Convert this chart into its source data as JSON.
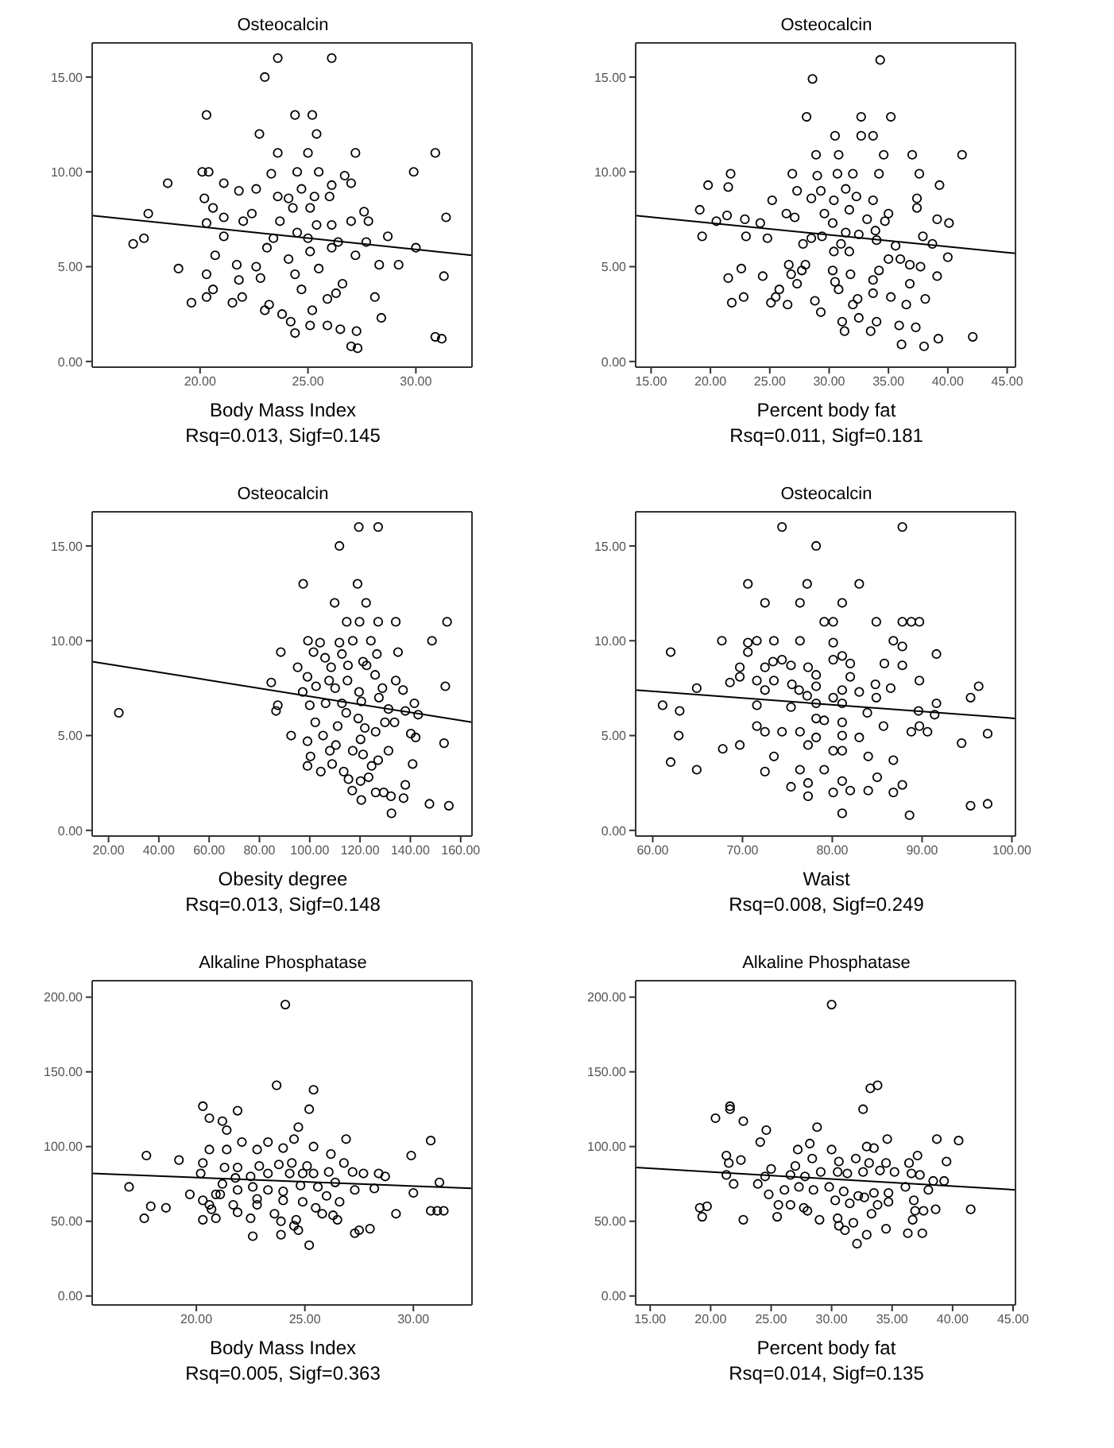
{
  "chart_data": [
    {
      "type": "scatter",
      "title": "Osteocalcin",
      "xlabel": "Body Mass Index",
      "annotations": [
        "Rsq=0.013, Sigf=0.145"
      ],
      "marker": "circle",
      "xlim": [
        15,
        32.6
      ],
      "ylim": [
        -0.3,
        16.8
      ],
      "xticks": [
        {
          "value": 20,
          "label": "20.00"
        },
        {
          "value": 25,
          "label": "25.00"
        },
        {
          "value": 30,
          "label": "30.00"
        }
      ],
      "yticks": [
        {
          "value": 0,
          "label": "0.00"
        },
        {
          "value": 5,
          "label": "5.00"
        },
        {
          "value": 10,
          "label": "10.00"
        },
        {
          "value": 15,
          "label": "15.00"
        }
      ],
      "series": [
        {
          "type": "scatter",
          "color": "#000000",
          "x": [
            23.6,
            26.1,
            23.0,
            20.3,
            24.4,
            25.2,
            22.75,
            25.4,
            23.6,
            25.0,
            27.2,
            30.9,
            20.1,
            20.4,
            23.3,
            24.5,
            25.5,
            29.9,
            18.5,
            21.1,
            26.7,
            27.0,
            21.8,
            22.6,
            24.7,
            26.1,
            20.2,
            23.6,
            24.1,
            25.3,
            26.0,
            20.6,
            22.4,
            24.3,
            25.1,
            17.6,
            21.1,
            27.6,
            27.8,
            31.4,
            20.3,
            22.0,
            23.7,
            25.4,
            26.1,
            27.0,
            16.9,
            17.4,
            21.1,
            23.4,
            24.5,
            25.0,
            26.4,
            27.7,
            28.7,
            30.0,
            20.7,
            23.1,
            24.1,
            25.1,
            26.1,
            27.2,
            19.0,
            21.7,
            22.6,
            24.4,
            25.5,
            28.3,
            29.2,
            20.3,
            31.3,
            21.8,
            22.8,
            26.6,
            20.6,
            24.7,
            26.3,
            20.3,
            19.6,
            21.5,
            21.95,
            23.2,
            25.9,
            28.1,
            23.0,
            23.8,
            25.2,
            28.4,
            24.2,
            25.1,
            25.9,
            26.5,
            27.25,
            24.4,
            27.0,
            27.3,
            30.9,
            31.2
          ],
          "values": [
            16.0,
            16.0,
            15.0,
            13.0,
            13.0,
            13.0,
            12.0,
            12.0,
            11.0,
            11.0,
            11.0,
            11.0,
            10.0,
            10.0,
            9.9,
            10.0,
            10.0,
            10.0,
            9.4,
            9.4,
            9.8,
            9.4,
            9.0,
            9.1,
            9.1,
            9.3,
            8.6,
            8.7,
            8.6,
            8.7,
            8.7,
            8.1,
            7.8,
            8.1,
            8.1,
            7.8,
            7.6,
            7.9,
            7.4,
            7.6,
            7.3,
            7.4,
            7.4,
            7.2,
            7.2,
            7.4,
            6.2,
            6.5,
            6.6,
            6.5,
            6.8,
            6.5,
            6.3,
            6.3,
            6.6,
            6.0,
            5.6,
            6.0,
            5.4,
            5.8,
            6.0,
            5.6,
            4.9,
            5.1,
            5.0,
            4.6,
            4.9,
            5.1,
            5.1,
            4.6,
            4.5,
            4.3,
            4.4,
            4.1,
            3.8,
            3.8,
            3.6,
            3.4,
            3.1,
            3.1,
            3.4,
            3.0,
            3.3,
            3.4,
            2.7,
            2.5,
            2.7,
            2.3,
            2.1,
            1.9,
            1.9,
            1.7,
            1.6,
            1.5,
            0.8,
            0.7,
            1.3,
            1.2
          ]
        },
        {
          "type": "line",
          "marker": "none",
          "color": "#000000",
          "x": [
            15,
            32.6
          ],
          "values": [
            7.7,
            5.6
          ]
        }
      ]
    },
    {
      "type": "scatter",
      "title": "Osteocalcin",
      "xlabel": "Percent body fat",
      "annotations": [
        "Rsq=0.011, Sigf=0.181"
      ],
      "marker": "circle",
      "xlim": [
        13.7,
        45.7
      ],
      "ylim": [
        -0.3,
        16.8
      ],
      "xticks": [
        {
          "value": 15,
          "label": "15.00"
        },
        {
          "value": 20,
          "label": "20.00"
        },
        {
          "value": 25,
          "label": "25.00"
        },
        {
          "value": 30,
          "label": "30.00"
        },
        {
          "value": 35,
          "label": "35.00"
        },
        {
          "value": 40,
          "label": "40.00"
        },
        {
          "value": 45,
          "label": "45.00"
        }
      ],
      "yticks": [
        {
          "value": 0,
          "label": "0.00"
        },
        {
          "value": 5,
          "label": "5.00"
        },
        {
          "value": 10,
          "label": "10.00"
        },
        {
          "value": 15,
          "label": "15.00"
        }
      ],
      "series": [
        {
          "type": "scatter",
          "color": "#000000",
          "x": [
            34.3,
            28.6,
            28.1,
            32.7,
            35.2,
            30.5,
            32.7,
            33.7,
            28.9,
            30.8,
            34.6,
            37.0,
            41.2,
            21.7,
            26.9,
            29.0,
            30.7,
            32.0,
            34.2,
            37.6,
            19.8,
            21.5,
            27.3,
            29.3,
            31.4,
            32.3,
            39.3,
            25.2,
            28.5,
            30.4,
            33.7,
            37.4,
            19.1,
            26.4,
            29.6,
            31.7,
            35.0,
            37.4,
            21.4,
            20.5,
            22.9,
            24.2,
            27.1,
            30.3,
            33.2,
            34.7,
            39.1,
            40.1,
            19.3,
            23.0,
            24.8,
            28.5,
            29.4,
            31.4,
            32.5,
            33.9,
            37.9,
            27.8,
            31.0,
            34.0,
            35.6,
            38.7,
            30.4,
            31.7,
            35.0,
            36.0,
            40.0,
            22.6,
            26.6,
            28.0,
            30.3,
            31.8,
            34.2,
            36.8,
            37.7,
            21.5,
            24.4,
            26.8,
            27.7,
            39.1,
            27.3,
            30.5,
            33.7,
            36.8,
            30.8,
            25.8,
            25.5,
            22.8,
            21.8,
            25.1,
            26.5,
            28.8,
            32.4,
            33.7,
            35.2,
            38.1,
            36.5,
            29.3,
            32.0,
            32.5,
            34.0,
            31.1,
            35.9,
            37.3,
            31.3,
            33.5,
            39.2,
            42.1,
            36.1,
            38.0
          ],
          "values": [
            15.9,
            14.9,
            12.9,
            12.9,
            12.9,
            11.9,
            11.9,
            11.9,
            10.9,
            10.9,
            10.9,
            10.9,
            10.9,
            9.9,
            9.9,
            9.8,
            9.9,
            9.9,
            9.9,
            9.9,
            9.3,
            9.2,
            9.0,
            9.0,
            9.1,
            8.7,
            9.3,
            8.5,
            8.6,
            8.5,
            8.5,
            8.6,
            8.0,
            7.8,
            7.8,
            8.0,
            7.8,
            8.1,
            7.7,
            7.4,
            7.5,
            7.3,
            7.6,
            7.3,
            7.5,
            7.4,
            7.5,
            7.3,
            6.6,
            6.6,
            6.5,
            6.5,
            6.6,
            6.8,
            6.7,
            6.9,
            6.6,
            6.2,
            6.2,
            6.4,
            6.1,
            6.2,
            5.8,
            5.8,
            5.4,
            5.4,
            5.5,
            4.9,
            5.1,
            5.1,
            4.8,
            4.6,
            4.8,
            5.1,
            5.0,
            4.4,
            4.5,
            4.6,
            4.8,
            4.5,
            4.1,
            4.2,
            4.3,
            4.1,
            3.8,
            3.8,
            3.4,
            3.4,
            3.1,
            3.1,
            3.0,
            3.2,
            3.3,
            3.6,
            3.4,
            3.3,
            3.0,
            2.6,
            3.0,
            2.3,
            2.1,
            2.1,
            1.9,
            1.8,
            1.6,
            1.6,
            1.2,
            1.3,
            0.9,
            0.8
          ]
        },
        {
          "type": "line",
          "marker": "none",
          "color": "#000000",
          "x": [
            13.7,
            45.7
          ],
          "values": [
            7.7,
            5.7
          ]
        }
      ]
    },
    {
      "type": "scatter",
      "title": "Osteocalcin",
      "xlabel": "Obesity degree",
      "annotations": [
        "Rsq=0.013, Sigf=0.148"
      ],
      "marker": "circle",
      "xlim": [
        13.5,
        164.5
      ],
      "ylim": [
        -0.3,
        16.8
      ],
      "xticks": [
        {
          "value": 20,
          "label": "20.00"
        },
        {
          "value": 40,
          "label": "40.00"
        },
        {
          "value": 60,
          "label": "60.00"
        },
        {
          "value": 80,
          "label": "80.00"
        },
        {
          "value": 100,
          "label": "100.00"
        },
        {
          "value": 120,
          "label": "120.00"
        },
        {
          "value": 140,
          "label": "140.00"
        },
        {
          "value": 160,
          "label": "160.00"
        }
      ],
      "yticks": [
        {
          "value": 0,
          "label": "0.00"
        },
        {
          "value": 5,
          "label": "5.00"
        },
        {
          "value": 10,
          "label": "10.00"
        },
        {
          "value": 15,
          "label": "15.00"
        }
      ],
      "series": [
        {
          "type": "scatter",
          "color": "#000000",
          "x": [
            24.1,
            119.5,
            127.2,
            111.8,
            97.4,
            119.0,
            109.9,
            122.4,
            114.7,
            119.8,
            127.2,
            134.2,
            154.6,
            99.3,
            104.1,
            111.8,
            117.1,
            124.3,
            148.6,
            88.5,
            101.5,
            106.1,
            112.8,
            121.2,
            126.7,
            135.1,
            95.2,
            108.5,
            115.2,
            122.6,
            99.1,
            107.7,
            115.0,
            126.0,
            84.7,
            134.2,
            153.9,
            97.2,
            102.5,
            110.1,
            119.6,
            128.9,
            137.1,
            87.3,
            100.0,
            106.3,
            112.8,
            120.5,
            127.5,
            141.6,
            86.6,
            114.5,
            131.3,
            138.0,
            143.1,
            119.3,
            129.9,
            102.2,
            111.1,
            121.9,
            133.7,
            92.6,
            105.3,
            126.2,
            140.2,
            142.1,
            99.1,
            110.4,
            120.2,
            153.4,
            108.0,
            117.1,
            131.3,
            100.3,
            121.2,
            127.2,
            140.9,
            99.1,
            104.4,
            108.9,
            113.5,
            124.6,
            115.4,
            120.2,
            123.4,
            138.0,
            116.9,
            126.2,
            129.4,
            132.3,
            137.3,
            120.5,
            147.6,
            155.3,
            132.5
          ],
          "values": [
            6.2,
            16.0,
            16.0,
            15.0,
            13.0,
            13.0,
            12.0,
            12.0,
            11.0,
            11.0,
            11.0,
            11.0,
            11.0,
            10.0,
            9.9,
            9.9,
            10.0,
            10.0,
            10.0,
            9.4,
            9.4,
            9.1,
            9.3,
            8.9,
            9.3,
            9.4,
            8.6,
            8.6,
            8.7,
            8.7,
            8.1,
            7.9,
            7.9,
            8.2,
            7.8,
            7.9,
            7.6,
            7.3,
            7.6,
            7.5,
            7.3,
            7.5,
            7.4,
            6.6,
            6.6,
            6.7,
            6.7,
            6.8,
            7.0,
            6.7,
            6.3,
            6.2,
            6.4,
            6.3,
            6.1,
            5.9,
            5.7,
            5.7,
            5.5,
            5.4,
            5.7,
            5.0,
            5.0,
            5.2,
            5.1,
            4.9,
            4.7,
            4.5,
            4.8,
            4.6,
            4.2,
            4.2,
            4.2,
            3.9,
            4.0,
            3.7,
            3.5,
            3.4,
            3.1,
            3.5,
            3.1,
            3.4,
            2.7,
            2.6,
            2.8,
            2.4,
            2.1,
            2.0,
            2.0,
            1.8,
            1.7,
            1.6,
            1.4,
            1.3,
            0.9
          ]
        },
        {
          "type": "line",
          "marker": "none",
          "color": "#000000",
          "x": [
            13.5,
            164.5
          ],
          "values": [
            8.9,
            5.7
          ]
        }
      ]
    },
    {
      "type": "scatter",
      "title": "Osteocalcin",
      "xlabel": "Waist",
      "annotations": [
        "Rsq=0.008, Sigf=0.249"
      ],
      "marker": "circle",
      "xlim": [
        58.1,
        100.4
      ],
      "ylim": [
        -0.3,
        16.8
      ],
      "xticks": [
        {
          "value": 60,
          "label": "60.00"
        },
        {
          "value": 70,
          "label": "70.00"
        },
        {
          "value": 80,
          "label": "80.00"
        },
        {
          "value": 90,
          "label": "90.00"
        },
        {
          "value": 100,
          "label": "100.00"
        }
      ],
      "yticks": [
        {
          "value": 0,
          "label": "0.00"
        },
        {
          "value": 5,
          "label": "5.00"
        },
        {
          "value": 10,
          "label": "10.00"
        },
        {
          "value": 15,
          "label": "15.00"
        }
      ],
      "series": [
        {
          "type": "scatter",
          "color": "#000000",
          "x": [
            74.4,
            87.8,
            78.2,
            70.6,
            77.2,
            83.0,
            72.5,
            76.4,
            81.1,
            79.1,
            80.1,
            84.9,
            87.8,
            88.8,
            89.7,
            67.7,
            70.6,
            71.6,
            73.5,
            76.4,
            80.1,
            86.8,
            87.8,
            62.0,
            91.6,
            70.6,
            74.4,
            73.4,
            81.1,
            82.0,
            85.8,
            87.8,
            69.7,
            72.5,
            75.4,
            77.3,
            80.1,
            68.6,
            69.7,
            71.6,
            73.5,
            75.5,
            78.2,
            82.0,
            89.7,
            64.9,
            72.5,
            76.3,
            78.2,
            81.1,
            83.0,
            84.8,
            86.5,
            96.3,
            61.1,
            63.0,
            71.6,
            75.4,
            77.2,
            78.2,
            80.1,
            81.1,
            84.9,
            89.6,
            91.6,
            95.4,
            78.2,
            79.1,
            81.1,
            83.9,
            85.7,
            89.7,
            91.4,
            71.6,
            72.5,
            74.4,
            76.4,
            78.2,
            81.1,
            83.0,
            88.8,
            90.6,
            97.3,
            62.9,
            67.8,
            69.7,
            77.3,
            80.1,
            81.1,
            94.4,
            62.0,
            64.9,
            73.5,
            72.5,
            76.4,
            79.1,
            84.0,
            86.8,
            85.0,
            75.4,
            77.3,
            81.1,
            82.0,
            84.0,
            86.8,
            87.8,
            77.3,
            80.1,
            81.1,
            88.6,
            95.4,
            97.3
          ],
          "values": [
            16.0,
            16.0,
            15.0,
            13.0,
            13.0,
            13.0,
            12.0,
            12.0,
            12.0,
            11.0,
            11.0,
            11.0,
            11.0,
            11.0,
            11.0,
            10.0,
            9.9,
            10.0,
            10.0,
            10.0,
            9.9,
            10.0,
            9.7,
            9.4,
            9.3,
            9.4,
            9.0,
            8.9,
            9.2,
            8.8,
            8.8,
            8.7,
            8.6,
            8.6,
            8.7,
            8.6,
            9.0,
            7.8,
            8.1,
            7.9,
            7.9,
            7.7,
            8.2,
            8.1,
            7.9,
            7.5,
            7.4,
            7.4,
            7.6,
            7.4,
            7.3,
            7.7,
            7.5,
            7.6,
            6.6,
            6.3,
            6.6,
            6.5,
            7.1,
            6.7,
            7.0,
            6.7,
            7.0,
            6.3,
            6.7,
            7.0,
            5.9,
            5.8,
            5.7,
            6.2,
            5.5,
            5.5,
            6.1,
            5.5,
            5.2,
            5.2,
            5.2,
            4.9,
            5.0,
            4.9,
            5.2,
            5.2,
            5.1,
            5.0,
            4.3,
            4.5,
            4.5,
            4.2,
            4.2,
            4.6,
            3.6,
            3.2,
            3.9,
            3.1,
            3.2,
            3.2,
            3.9,
            3.7,
            2.8,
            2.3,
            2.5,
            2.6,
            2.1,
            2.1,
            2.0,
            2.4,
            1.8,
            2.0,
            0.9,
            0.8,
            1.3,
            1.4
          ]
        },
        {
          "type": "line",
          "marker": "none",
          "color": "#000000",
          "x": [
            58.1,
            100.4
          ],
          "values": [
            7.4,
            5.9
          ]
        }
      ]
    },
    {
      "type": "scatter",
      "title": "Alkaline Phosphatase",
      "xlabel": "Body Mass Index",
      "annotations": [
        "Rsq=0.005, Sigf=0.363"
      ],
      "marker": "circle",
      "xlim": [
        15.2,
        32.7
      ],
      "ylim": [
        -6,
        211
      ],
      "xticks": [
        {
          "value": 20,
          "label": "20.00"
        },
        {
          "value": 25,
          "label": "25.00"
        },
        {
          "value": 30,
          "label": "30.00"
        }
      ],
      "yticks": [
        {
          "value": 0,
          "label": "0.00"
        },
        {
          "value": 50,
          "label": "50.00"
        },
        {
          "value": 100,
          "label": "100.00"
        },
        {
          "value": 150,
          "label": "150.00"
        },
        {
          "value": 200,
          "label": "200.00"
        }
      ],
      "series": [
        {
          "type": "scatter",
          "color": "#000000",
          "x": [
            24.1,
            23.7,
            25.4,
            20.3,
            20.6,
            21.2,
            21.9,
            25.2,
            21.4,
            24.7,
            22.1,
            23.3,
            22.8,
            24.0,
            24.5,
            25.4,
            26.9,
            30.8,
            20.6,
            21.4,
            17.7,
            19.2,
            20.3,
            21.3,
            21.9,
            22.9,
            23.8,
            24.4,
            25.1,
            26.2,
            26.8,
            29.9,
            20.2,
            21.2,
            21.8,
            22.5,
            23.3,
            24.3,
            24.9,
            25.4,
            26.1,
            27.2,
            27.7,
            28.4,
            28.7,
            31.2,
            16.9,
            19.7,
            21.1,
            21.9,
            22.6,
            23.3,
            24.0,
            24.8,
            25.6,
            26.4,
            27.3,
            28.2,
            30.0,
            20.3,
            20.9,
            21.7,
            22.8,
            24.0,
            24.9,
            26.0,
            26.6,
            20.7,
            21.9,
            22.8,
            23.6,
            25.5,
            17.9,
            18.6,
            20.6,
            30.8,
            31.1,
            31.4,
            29.2,
            20.3,
            20.9,
            17.6,
            22.5,
            23.9,
            24.6,
            25.8,
            26.3,
            26.5,
            27.3,
            28.0,
            27.5,
            22.6,
            23.9,
            24.5,
            24.7,
            25.2
          ],
          "values": [
            195,
            141,
            138,
            127,
            119,
            117,
            124,
            125,
            111,
            113,
            103,
            103,
            98,
            99,
            105,
            100,
            105,
            104,
            98,
            98,
            94,
            91,
            89,
            86,
            86,
            87,
            88,
            89,
            87,
            95,
            89,
            94,
            82,
            75,
            79,
            80,
            82,
            82,
            82,
            82,
            83,
            83,
            82,
            82,
            80,
            76,
            73,
            68,
            68,
            71,
            73,
            71,
            70,
            74,
            73,
            76,
            71,
            72,
            69,
            64,
            68,
            61,
            65,
            64,
            63,
            67,
            63,
            58,
            56,
            61,
            55,
            59,
            60,
            59,
            61,
            57,
            57,
            57,
            55,
            51,
            52,
            52,
            52,
            50,
            51,
            55,
            54,
            51,
            42,
            45,
            44,
            40,
            41,
            47,
            44,
            34
          ]
        },
        {
          "type": "line",
          "marker": "none",
          "color": "#000000",
          "x": [
            15.2,
            32.7
          ],
          "values": [
            82,
            72
          ]
        }
      ]
    },
    {
      "type": "scatter",
      "title": "Alkaline Phosphatase",
      "xlabel": "Percent body fat",
      "annotations": [
        "Rsq=0.014, Sigf=0.135"
      ],
      "marker": "circle",
      "xlim": [
        13.8,
        45.2
      ],
      "ylim": [
        -6,
        211
      ],
      "xticks": [
        {
          "value": 15,
          "label": "15.00"
        },
        {
          "value": 20,
          "label": "20.00"
        },
        {
          "value": 25,
          "label": "25.00"
        },
        {
          "value": 30,
          "label": "30.00"
        },
        {
          "value": 35,
          "label": "35.00"
        },
        {
          "value": 40,
          "label": "40.00"
        },
        {
          "value": 45,
          "label": "45.00"
        }
      ],
      "yticks": [
        {
          "value": 0,
          "label": "0.00"
        },
        {
          "value": 50,
          "label": "50.00"
        },
        {
          "value": 100,
          "label": "100.00"
        },
        {
          "value": 150,
          "label": "150.00"
        },
        {
          "value": 200,
          "label": "200.00"
        }
      ],
      "series": [
        {
          "type": "scatter",
          "color": "#000000",
          "x": [
            30.0,
            33.2,
            33.8,
            32.6,
            20.4,
            21.6,
            21.6,
            22.7,
            24.6,
            28.8,
            24.1,
            28.2,
            27.2,
            30.0,
            32.9,
            33.5,
            34.6,
            38.7,
            40.5,
            21.3,
            22.5,
            21.5,
            25.0,
            27.0,
            28.4,
            30.6,
            32.0,
            33.1,
            34.5,
            36.4,
            37.1,
            39.5,
            21.3,
            21.9,
            23.9,
            24.5,
            26.6,
            27.8,
            29.1,
            30.5,
            31.3,
            32.6,
            34.0,
            35.2,
            36.6,
            37.3,
            38.4,
            39.3,
            24.8,
            26.1,
            27.3,
            28.5,
            29.8,
            31.0,
            32.2,
            33.5,
            34.7,
            36.1,
            38.0,
            25.6,
            26.6,
            27.7,
            30.3,
            31.5,
            32.7,
            33.8,
            34.7,
            36.8,
            19.1,
            19.7,
            19.3,
            22.7,
            25.5,
            28.0,
            29.0,
            30.5,
            31.8,
            33.3,
            36.9,
            37.6,
            38.6,
            41.5,
            36.7,
            30.6,
            31.1,
            32.9,
            34.5,
            36.3,
            37.5,
            32.1
          ],
          "values": [
            195,
            139,
            141,
            125,
            119,
            127,
            125,
            117,
            111,
            113,
            103,
            102,
            98,
            98,
            100,
            99,
            105,
            105,
            104,
            94,
            91,
            89,
            85,
            87,
            92,
            90,
            92,
            89,
            89,
            89,
            94,
            90,
            81,
            75,
            75,
            80,
            81,
            80,
            83,
            83,
            82,
            83,
            84,
            83,
            82,
            81,
            77,
            77,
            68,
            71,
            73,
            71,
            73,
            70,
            67,
            69,
            69,
            73,
            71,
            61,
            61,
            59,
            64,
            62,
            66,
            61,
            63,
            64,
            59,
            60,
            53,
            51,
            53,
            57,
            51,
            52,
            49,
            55,
            57,
            57,
            58,
            58,
            51,
            47,
            44,
            41,
            45,
            42,
            42,
            35
          ]
        },
        {
          "type": "line",
          "marker": "none",
          "color": "#000000",
          "x": [
            13.8,
            45.2
          ],
          "values": [
            86,
            71
          ]
        }
      ]
    }
  ]
}
